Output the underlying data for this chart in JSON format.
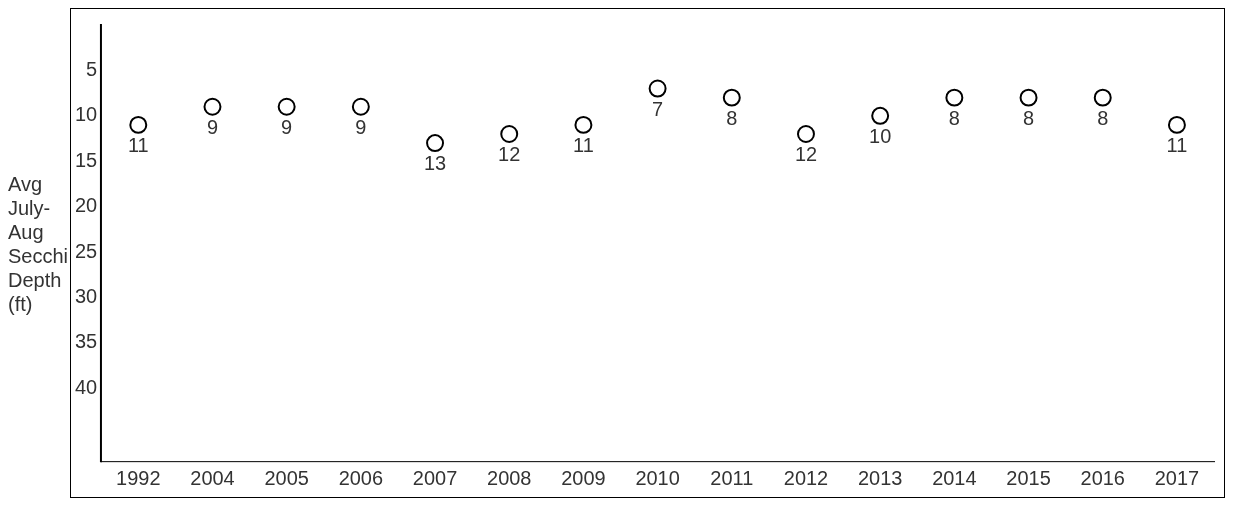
{
  "chart_data": {
    "type": "scatter",
    "ylabel": "Avg July-Aug Secchi Depth (ft)",
    "categories": [
      "1992",
      "2004",
      "2005",
      "2006",
      "2007",
      "2008",
      "2009",
      "2010",
      "2011",
      "2012",
      "2013",
      "2014",
      "2015",
      "2016",
      "2017"
    ],
    "values": [
      11,
      9,
      9,
      9,
      13,
      12,
      11,
      7,
      8,
      12,
      10,
      8,
      8,
      8,
      11
    ],
    "color": "#000000",
    "ylim": [
      48,
      0
    ],
    "yticks": [
      5,
      10,
      15,
      20,
      25,
      30,
      35,
      40
    ],
    "grid": false,
    "legend": false,
    "marker": "circle",
    "data_labels": true
  }
}
